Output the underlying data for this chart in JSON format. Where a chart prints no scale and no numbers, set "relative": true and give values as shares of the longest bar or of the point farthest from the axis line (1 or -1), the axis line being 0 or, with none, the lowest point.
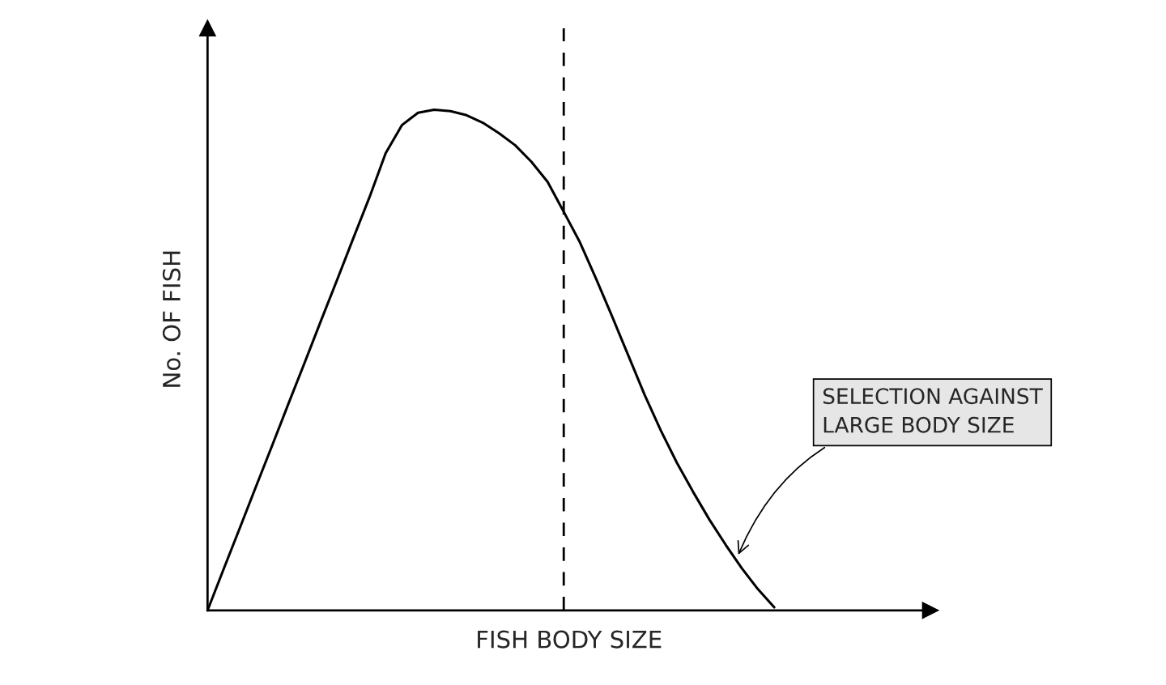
{
  "chart_data": {
    "type": "line",
    "relative": true,
    "xlabel": "FISH BODY SIZE",
    "ylabel": "No. OF FISH",
    "color": "#000000",
    "grid": false,
    "legend": false,
    "marker": "none",
    "line_style": "solid",
    "categories": [
      null,
      null,
      null,
      null,
      null,
      null,
      null,
      null,
      null,
      null,
      null,
      null,
      null,
      null,
      null,
      null,
      null,
      null,
      null,
      null,
      null,
      null,
      null,
      null,
      null,
      null,
      null,
      null,
      null,
      null,
      null,
      null,
      null,
      null,
      null,
      null,
      null,
      null,
      null,
      null,
      null,
      null,
      null,
      null,
      null
    ],
    "values": [
      0,
      0.083,
      0.165,
      0.248,
      0.33,
      0.413,
      0.495,
      0.578,
      0.66,
      0.743,
      0.825,
      0.913,
      0.969,
      0.994,
      1.0,
      0.997,
      0.989,
      0.974,
      0.953,
      0.929,
      0.896,
      0.856,
      0.796,
      0.735,
      0.662,
      0.586,
      0.508,
      0.43,
      0.359,
      0.294,
      0.236,
      0.181,
      0.131,
      0.084,
      0.042,
      0.006,
      null,
      null,
      null,
      null,
      null,
      null,
      null,
      null,
      null
    ],
    "annotations": [
      "SELECTION AGAINST\nLARGE BODY SIZE"
    ]
  }
}
